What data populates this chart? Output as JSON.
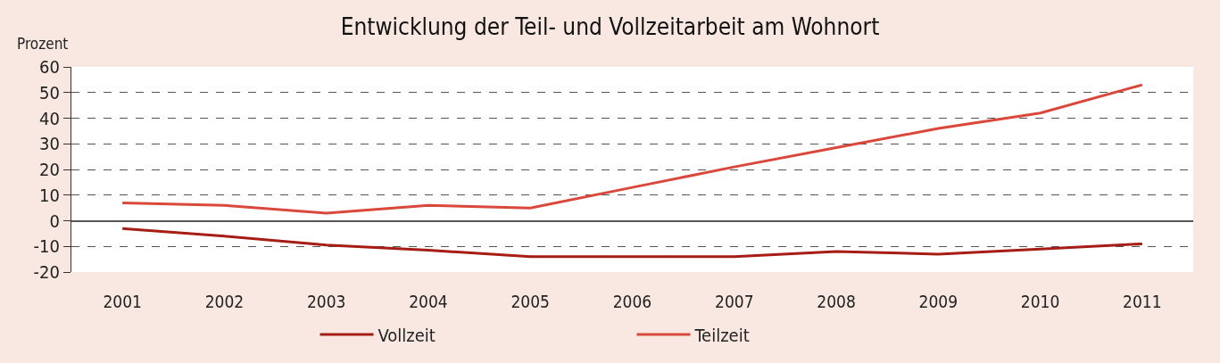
{
  "chart_data": {
    "type": "line",
    "title": "Entwicklung der Teil- und Vollzeitarbeit am Wohnort",
    "ylabel": "Prozent",
    "categories": [
      "2001",
      "2002",
      "2003",
      "2004",
      "2005",
      "2006",
      "2007",
      "2008",
      "2009",
      "2010",
      "2011"
    ],
    "series": [
      {
        "name": "Vollzeit",
        "color": "#a51d15",
        "values": [
          -3,
          -6,
          -9.5,
          -11.5,
          -14,
          -14,
          -14,
          -12,
          -13,
          -11,
          -9
        ]
      },
      {
        "name": "Teilzeit",
        "color": "#d9483b",
        "values": [
          7,
          6,
          3,
          6,
          5,
          13,
          21,
          28.5,
          36,
          42,
          53
        ]
      }
    ],
    "ylim": [
      -20,
      60
    ],
    "yticks": [
      -20,
      -10,
      0,
      10,
      20,
      30,
      40,
      50,
      60
    ],
    "grid": "y",
    "legend": "bottom",
    "marker": "none",
    "line_style": "solid"
  }
}
